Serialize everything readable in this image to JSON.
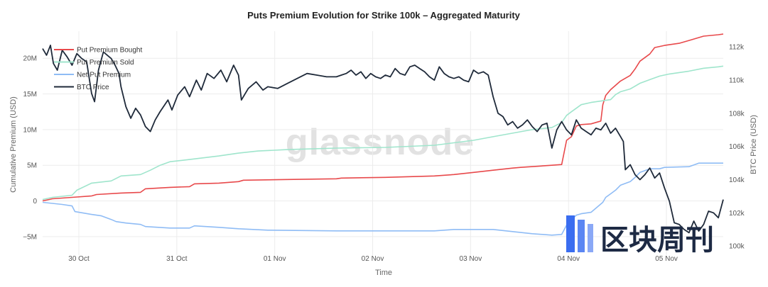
{
  "chart_data": {
    "type": "line",
    "title": "Puts Premium Evolution for Strike 100k – Aggregated Maturity",
    "xlabel": "Time",
    "ylabel": "Cumulative Premium (USD)",
    "y2label": "BTC Price (USD)",
    "x_ticks": [
      "30 Oct",
      "31 Oct",
      "01 Nov",
      "02 Nov",
      "03 Nov",
      "04 Nov",
      "05 Nov"
    ],
    "xlim": [
      0,
      6.95
    ],
    "y_ticks": [
      {
        "value": -5000000,
        "label": "−5M"
      },
      {
        "value": 0,
        "label": "0"
      },
      {
        "value": 5000000,
        "label": "5M"
      },
      {
        "value": 10000000,
        "label": "10M"
      },
      {
        "value": 15000000,
        "label": "15M"
      },
      {
        "value": 20000000,
        "label": "20M"
      }
    ],
    "ylim": [
      -7600000,
      23800000
    ],
    "y2_ticks": [
      {
        "value": 100000,
        "label": "100k"
      },
      {
        "value": 102000,
        "label": "102k"
      },
      {
        "value": 104000,
        "label": "104k"
      },
      {
        "value": 106000,
        "label": "106k"
      },
      {
        "value": 108000,
        "label": "108k"
      },
      {
        "value": 110000,
        "label": "110k"
      },
      {
        "value": 112000,
        "label": "112k"
      }
    ],
    "y2lim": [
      99450,
      112950
    ],
    "legend_position": "top-left",
    "series": [
      {
        "name": "Put Premium Bought",
        "color": "#e8494b",
        "axis": "left",
        "points": [
          [
            0,
            0
          ],
          [
            0.1,
            300000
          ],
          [
            0.3,
            500000
          ],
          [
            0.5,
            700000
          ],
          [
            0.55,
            900000
          ],
          [
            0.8,
            1100000
          ],
          [
            1.0,
            1200000
          ],
          [
            1.05,
            1700000
          ],
          [
            1.3,
            1900000
          ],
          [
            1.5,
            2000000
          ],
          [
            1.55,
            2400000
          ],
          [
            1.8,
            2500000
          ],
          [
            2.0,
            2700000
          ],
          [
            2.05,
            2900000
          ],
          [
            2.5,
            3000000
          ],
          [
            3.0,
            3100000
          ],
          [
            3.05,
            3200000
          ],
          [
            3.5,
            3300000
          ],
          [
            4.0,
            3500000
          ],
          [
            4.2,
            3700000
          ],
          [
            4.4,
            4000000
          ],
          [
            4.6,
            4300000
          ],
          [
            4.8,
            4600000
          ],
          [
            4.88,
            4700000
          ],
          [
            5.2,
            5000000
          ],
          [
            5.3,
            5100000
          ],
          [
            5.35,
            8500000
          ],
          [
            5.4,
            9000000
          ],
          [
            5.45,
            10500000
          ],
          [
            5.5,
            10700000
          ],
          [
            5.6,
            10800000
          ],
          [
            5.7,
            11200000
          ],
          [
            5.72,
            13500000
          ],
          [
            5.75,
            14800000
          ],
          [
            5.8,
            15600000
          ],
          [
            5.9,
            16800000
          ],
          [
            6.0,
            17600000
          ],
          [
            6.05,
            18500000
          ],
          [
            6.1,
            19600000
          ],
          [
            6.2,
            20600000
          ],
          [
            6.25,
            21500000
          ],
          [
            6.35,
            21800000
          ],
          [
            6.5,
            22100000
          ],
          [
            6.6,
            22500000
          ],
          [
            6.75,
            23100000
          ],
          [
            6.9,
            23300000
          ],
          [
            6.95,
            23400000
          ]
        ]
      },
      {
        "name": "Put Premium Sold",
        "color": "#9fe5cc",
        "axis": "left",
        "points": [
          [
            0,
            200000
          ],
          [
            0.1,
            500000
          ],
          [
            0.3,
            800000
          ],
          [
            0.35,
            1500000
          ],
          [
            0.5,
            2500000
          ],
          [
            0.7,
            2800000
          ],
          [
            0.8,
            3500000
          ],
          [
            1.0,
            3700000
          ],
          [
            1.1,
            4300000
          ],
          [
            1.2,
            5000000
          ],
          [
            1.3,
            5500000
          ],
          [
            1.5,
            5800000
          ],
          [
            1.8,
            6300000
          ],
          [
            2.0,
            6700000
          ],
          [
            2.2,
            7000000
          ],
          [
            2.5,
            7200000
          ],
          [
            3.0,
            7400000
          ],
          [
            3.5,
            7500000
          ],
          [
            4.0,
            7800000
          ],
          [
            4.4,
            8500000
          ],
          [
            4.6,
            9000000
          ],
          [
            4.8,
            9500000
          ],
          [
            5.0,
            10000000
          ],
          [
            5.2,
            10300000
          ],
          [
            5.3,
            11000000
          ],
          [
            5.35,
            12000000
          ],
          [
            5.4,
            12500000
          ],
          [
            5.5,
            13500000
          ],
          [
            5.6,
            13800000
          ],
          [
            5.8,
            14200000
          ],
          [
            5.85,
            14900000
          ],
          [
            5.9,
            15300000
          ],
          [
            6.0,
            15700000
          ],
          [
            6.1,
            16500000
          ],
          [
            6.2,
            17000000
          ],
          [
            6.3,
            17500000
          ],
          [
            6.4,
            17800000
          ],
          [
            6.6,
            18200000
          ],
          [
            6.75,
            18600000
          ],
          [
            6.9,
            18800000
          ],
          [
            6.95,
            18900000
          ]
        ]
      },
      {
        "name": "Net Put Premium",
        "color": "#8fbcf5",
        "axis": "left",
        "points": [
          [
            0,
            -200000
          ],
          [
            0.2,
            -500000
          ],
          [
            0.3,
            -700000
          ],
          [
            0.33,
            -1500000
          ],
          [
            0.5,
            -1900000
          ],
          [
            0.6,
            -2100000
          ],
          [
            0.7,
            -2600000
          ],
          [
            0.75,
            -2900000
          ],
          [
            0.85,
            -3100000
          ],
          [
            1.0,
            -3300000
          ],
          [
            1.05,
            -3600000
          ],
          [
            1.3,
            -3800000
          ],
          [
            1.5,
            -3800000
          ],
          [
            1.55,
            -3500000
          ],
          [
            1.8,
            -3700000
          ],
          [
            2.0,
            -3900000
          ],
          [
            2.3,
            -4100000
          ],
          [
            3.0,
            -4200000
          ],
          [
            3.5,
            -4200000
          ],
          [
            4.0,
            -4200000
          ],
          [
            4.2,
            -4000000
          ],
          [
            4.6,
            -4000000
          ],
          [
            4.8,
            -4300000
          ],
          [
            5.0,
            -4600000
          ],
          [
            5.2,
            -4800000
          ],
          [
            5.3,
            -4700000
          ],
          [
            5.35,
            -3400000
          ],
          [
            5.45,
            -2000000
          ],
          [
            5.5,
            -1800000
          ],
          [
            5.6,
            -1600000
          ],
          [
            5.72,
            -200000
          ],
          [
            5.75,
            500000
          ],
          [
            5.8,
            1000000
          ],
          [
            5.85,
            1500000
          ],
          [
            5.9,
            2200000
          ],
          [
            6.0,
            2700000
          ],
          [
            6.05,
            3300000
          ],
          [
            6.1,
            4000000
          ],
          [
            6.2,
            4500000
          ],
          [
            6.3,
            4500000
          ],
          [
            6.35,
            4700000
          ],
          [
            6.6,
            4800000
          ],
          [
            6.7,
            5300000
          ],
          [
            6.9,
            5300000
          ],
          [
            6.95,
            5300000
          ]
        ]
      },
      {
        "name": "BTC Price",
        "color": "#1f2a3a",
        "axis": "right",
        "points": [
          [
            0,
            111900
          ],
          [
            0.04,
            111500
          ],
          [
            0.08,
            112100
          ],
          [
            0.11,
            111000
          ],
          [
            0.15,
            110600
          ],
          [
            0.2,
            111800
          ],
          [
            0.25,
            111400
          ],
          [
            0.3,
            110900
          ],
          [
            0.35,
            111600
          ],
          [
            0.4,
            111300
          ],
          [
            0.45,
            111100
          ],
          [
            0.5,
            109200
          ],
          [
            0.53,
            108700
          ],
          [
            0.57,
            110600
          ],
          [
            0.62,
            111700
          ],
          [
            0.66,
            111500
          ],
          [
            0.7,
            111300
          ],
          [
            0.74,
            110900
          ],
          [
            0.78,
            110400
          ],
          [
            0.8,
            109600
          ],
          [
            0.85,
            108400
          ],
          [
            0.9,
            107700
          ],
          [
            0.95,
            108300
          ],
          [
            1.0,
            107900
          ],
          [
            1.05,
            107200
          ],
          [
            1.1,
            106900
          ],
          [
            1.15,
            107600
          ],
          [
            1.2,
            108100
          ],
          [
            1.28,
            108800
          ],
          [
            1.32,
            108200
          ],
          [
            1.38,
            109100
          ],
          [
            1.45,
            109600
          ],
          [
            1.5,
            109000
          ],
          [
            1.57,
            110000
          ],
          [
            1.62,
            109400
          ],
          [
            1.68,
            110400
          ],
          [
            1.75,
            110100
          ],
          [
            1.82,
            110600
          ],
          [
            1.88,
            109900
          ],
          [
            1.95,
            110900
          ],
          [
            2.0,
            110300
          ],
          [
            2.03,
            108800
          ],
          [
            2.1,
            109500
          ],
          [
            2.18,
            109900
          ],
          [
            2.25,
            109400
          ],
          [
            2.3,
            109600
          ],
          [
            2.4,
            109500
          ],
          [
            2.5,
            109800
          ],
          [
            2.6,
            110100
          ],
          [
            2.7,
            110400
          ],
          [
            2.8,
            110300
          ],
          [
            2.9,
            110200
          ],
          [
            3.0,
            110200
          ],
          [
            3.05,
            110300
          ],
          [
            3.1,
            110400
          ],
          [
            3.15,
            110600
          ],
          [
            3.2,
            110300
          ],
          [
            3.25,
            110500
          ],
          [
            3.3,
            110100
          ],
          [
            3.35,
            110400
          ],
          [
            3.4,
            110200
          ],
          [
            3.45,
            110100
          ],
          [
            3.5,
            110300
          ],
          [
            3.55,
            110200
          ],
          [
            3.6,
            110700
          ],
          [
            3.65,
            110400
          ],
          [
            3.7,
            110300
          ],
          [
            3.75,
            110800
          ],
          [
            3.8,
            110900
          ],
          [
            3.85,
            110700
          ],
          [
            3.9,
            110500
          ],
          [
            3.95,
            110200
          ],
          [
            4.0,
            110000
          ],
          [
            4.05,
            110800
          ],
          [
            4.1,
            110400
          ],
          [
            4.15,
            110200
          ],
          [
            4.2,
            110100
          ],
          [
            4.25,
            110200
          ],
          [
            4.3,
            110000
          ],
          [
            4.35,
            109900
          ],
          [
            4.4,
            110600
          ],
          [
            4.45,
            110400
          ],
          [
            4.5,
            110500
          ],
          [
            4.55,
            110300
          ],
          [
            4.6,
            109000
          ],
          [
            4.65,
            108000
          ],
          [
            4.7,
            107800
          ],
          [
            4.75,
            107300
          ],
          [
            4.8,
            107500
          ],
          [
            4.85,
            107100
          ],
          [
            4.9,
            107300
          ],
          [
            4.95,
            107600
          ],
          [
            5.0,
            107200
          ],
          [
            5.05,
            106900
          ],
          [
            5.1,
            107300
          ],
          [
            5.15,
            107400
          ],
          [
            5.2,
            105900
          ],
          [
            5.25,
            107000
          ],
          [
            5.3,
            107500
          ],
          [
            5.35,
            107000
          ],
          [
            5.4,
            106700
          ],
          [
            5.45,
            107600
          ],
          [
            5.5,
            107100
          ],
          [
            5.55,
            106900
          ],
          [
            5.6,
            106700
          ],
          [
            5.65,
            107100
          ],
          [
            5.7,
            107000
          ],
          [
            5.75,
            107400
          ],
          [
            5.8,
            106800
          ],
          [
            5.85,
            107100
          ],
          [
            5.9,
            106600
          ],
          [
            5.93,
            106300
          ],
          [
            5.95,
            104600
          ],
          [
            6.0,
            104900
          ],
          [
            6.05,
            104300
          ],
          [
            6.1,
            104000
          ],
          [
            6.15,
            104300
          ],
          [
            6.2,
            104700
          ],
          [
            6.25,
            104100
          ],
          [
            6.3,
            104400
          ],
          [
            6.35,
            103500
          ],
          [
            6.4,
            102700
          ],
          [
            6.45,
            101400
          ],
          [
            6.5,
            101300
          ],
          [
            6.55,
            101000
          ],
          [
            6.6,
            100800
          ],
          [
            6.65,
            101500
          ],
          [
            6.7,
            100900
          ],
          [
            6.75,
            101300
          ],
          [
            6.8,
            102100
          ],
          [
            6.85,
            102000
          ],
          [
            6.9,
            101700
          ],
          [
            6.95,
            102800
          ]
        ]
      }
    ]
  },
  "watermark": "glassnode",
  "corner_logo_text": "区块周刊"
}
